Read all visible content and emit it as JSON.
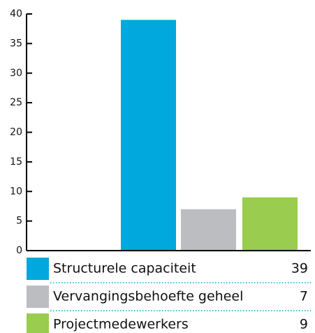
{
  "chart_data": {
    "type": "bar",
    "categories": [
      null
    ],
    "series": [
      {
        "name": "Structurele capaciteit",
        "color": "#00a8dd",
        "values": [
          39
        ]
      },
      {
        "name": "Vervangingsbehoefte geheel",
        "color": "#bcbdc0",
        "values": [
          7
        ]
      },
      {
        "name": "Projectmedewerkers",
        "color": "#99cc4f",
        "values": [
          9
        ]
      }
    ],
    "ylim": [
      0,
      40
    ],
    "yticks": [
      0,
      5,
      10,
      15,
      20,
      25,
      30,
      35,
      40
    ],
    "grid": false
  }
}
